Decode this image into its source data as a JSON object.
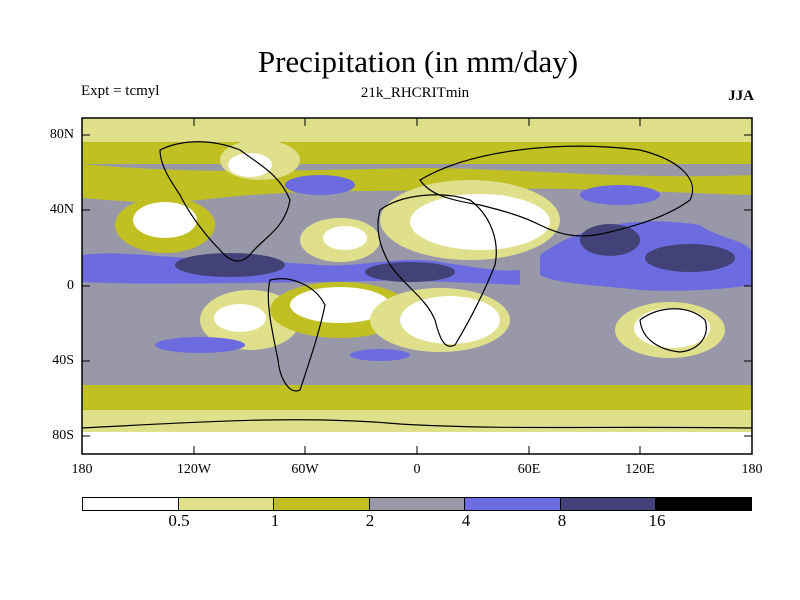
{
  "title": "Precipitation (in mm/day)",
  "experiment": "Expt = tcmyl",
  "run_name": "21k_RHCRITmin",
  "season": "JJA",
  "lat_ticks": [
    "80N",
    "40N",
    "0",
    "40S",
    "80S"
  ],
  "lon_ticks": [
    "180",
    "120W",
    "60W",
    "0",
    "60E",
    "120E",
    "180"
  ],
  "colorbar": {
    "colors": [
      "#ffffff",
      "#e0e08c",
      "#c0c023",
      "#9898a8",
      "#6c6ce0",
      "#424278",
      "#000000"
    ],
    "labels": [
      "0.5",
      "1",
      "2",
      "4",
      "8",
      "16"
    ]
  },
  "chart_data": {
    "type": "heatmap",
    "title": "Precipitation (in mm/day)",
    "variable": "Precipitation",
    "units": "mm/day",
    "levels": [
      0.5,
      1,
      2,
      4,
      8,
      16
    ],
    "xlabel": "",
    "ylabel": "",
    "xlim": [
      -180,
      180
    ],
    "ylim": [
      -90,
      90
    ]
  }
}
